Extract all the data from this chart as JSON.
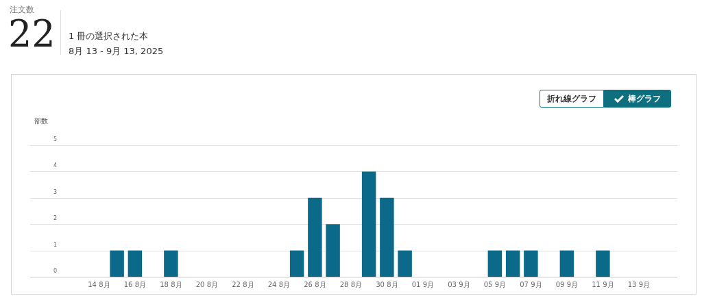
{
  "chart_data": {
    "type": "bar",
    "title": "注文数",
    "subtitle": "1 冊の選択された本",
    "ylabel": "部数",
    "annotations": [
      "22",
      "8月 13 - 9月 13, 2025",
      "折れ線グラフ",
      "棒グラフ"
    ],
    "categories": [
      null,
      "14 8月",
      null,
      "16 8月",
      null,
      "18 8月",
      null,
      "20 8月",
      null,
      "22 8月",
      null,
      "24 8月",
      null,
      "26 8月",
      null,
      "28 8月",
      null,
      "30 8月",
      null,
      "01 9月",
      null,
      "03 9月",
      null,
      "05 9月",
      null,
      "07 9月",
      null,
      "09 9月",
      null,
      "11 9月",
      null,
      "13 9月"
    ],
    "values": [
      0,
      0,
      1,
      1,
      0,
      1,
      0,
      0,
      0,
      0,
      0,
      0,
      1,
      3,
      2,
      0,
      4,
      3,
      1,
      0,
      0,
      0,
      0,
      1,
      1,
      1,
      0,
      1,
      0,
      1,
      0,
      0
    ],
    "color": "#0b6a8a",
    "ylim": [
      0,
      5
    ],
    "yticks": [
      0,
      1,
      2,
      3,
      4,
      5
    ],
    "grid": "y",
    "legend": false
  }
}
